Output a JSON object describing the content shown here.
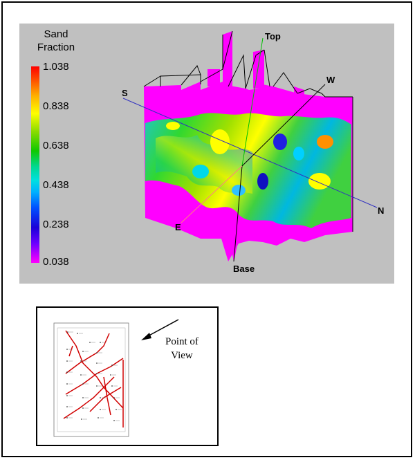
{
  "legend": {
    "title_line1": "Sand",
    "title_line2": "Fraction",
    "ticks": [
      "1.038",
      "0.838",
      "0.638",
      "0.438",
      "0.238",
      "0.038"
    ]
  },
  "labels": {
    "top": "Top",
    "base": "Base",
    "south": "S",
    "north": "N",
    "east": "E",
    "west": "W"
  },
  "inset": {
    "point_of_view_line1": "Point of",
    "point_of_view_line2": "View"
  },
  "colors": {
    "panel_bg": "#c0c0c0",
    "magenta": "#ff00ff",
    "axis_blue": "#3030c0",
    "top_green": "#00c000",
    "red_lines": "#d00000"
  }
}
